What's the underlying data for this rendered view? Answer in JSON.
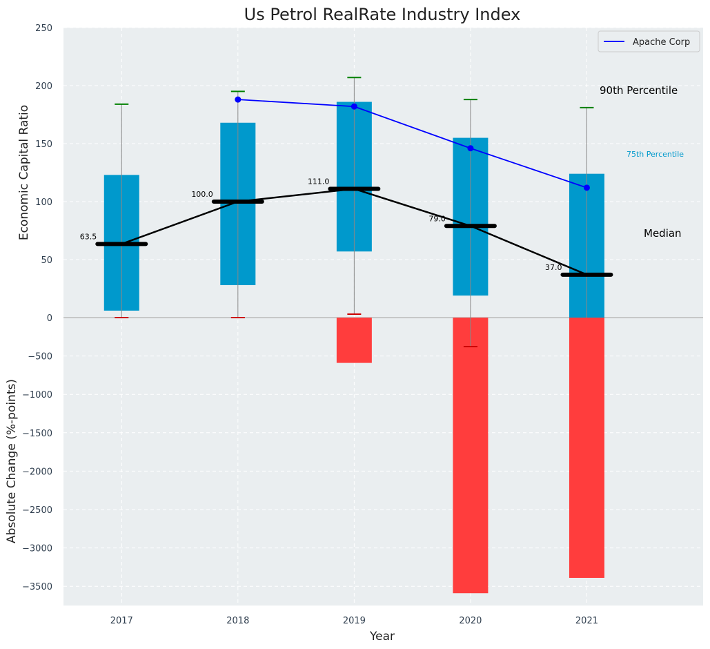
{
  "chart_data": {
    "type": "bar",
    "title": "Us Petrol RealRate Industry Index",
    "xlabel": "Year",
    "categories": [
      "2017",
      "2018",
      "2019",
      "2020",
      "2021"
    ],
    "top_panel": {
      "ylabel": "Economic Capital Ratio",
      "ylim": [
        0,
        250
      ],
      "yticks": [
        0,
        50,
        100,
        150,
        200,
        250
      ],
      "ytick_labels": [
        "0",
        "50",
        "100",
        "150",
        "200",
        "250"
      ],
      "percentile_75_bars": [
        {
          "bottom": 6,
          "top": 123
        },
        {
          "bottom": 28,
          "top": 168
        },
        {
          "bottom": 57,
          "top": 186
        },
        {
          "bottom": 19,
          "top": 155
        },
        {
          "bottom": 0,
          "top": 124
        }
      ],
      "whisker_top": [
        184,
        195,
        207,
        188,
        181
      ],
      "whisker_bottom": [
        0,
        0,
        3,
        -25,
        null
      ],
      "median": {
        "name": "Median",
        "values": [
          63.5,
          100.0,
          111.0,
          79.0,
          37.0
        ],
        "labels": [
          "63.5",
          "100.0",
          "111.0",
          "79.0",
          "37.0"
        ]
      },
      "series": [
        {
          "name": "Apache Corp",
          "color": "#0000ff",
          "x": [
            "2018",
            "2019",
            "2020",
            "2021"
          ],
          "values": [
            188,
            182,
            146,
            112
          ]
        }
      ],
      "annotations": {
        "p90": "90th Percentile",
        "p75": "75th Percentile",
        "median": "Median"
      },
      "legend": "top-right"
    },
    "bottom_panel": {
      "ylabel": "Absolute Change (%-points)",
      "ylim": [
        -3750,
        0
      ],
      "yticks": [
        0,
        -500,
        -1000,
        -1500,
        -2000,
        -2500,
        -3000,
        -3500
      ],
      "ytick_labels": [
        "0",
        "−500",
        "−1000",
        "−1500",
        "−2000",
        "−2500",
        "−3000",
        "−3500"
      ],
      "values": [
        0,
        0,
        -590,
        -3590,
        -3390
      ]
    },
    "colors": {
      "bar75": "#0099cc",
      "negative": "#ff3d3d",
      "median": "#000000",
      "whisker_top": "#008000",
      "whisker_bottom": "#cc0000",
      "whisker_line": "#888888",
      "panel_bg": "#eaeef0",
      "grid": "#ffffff"
    }
  }
}
